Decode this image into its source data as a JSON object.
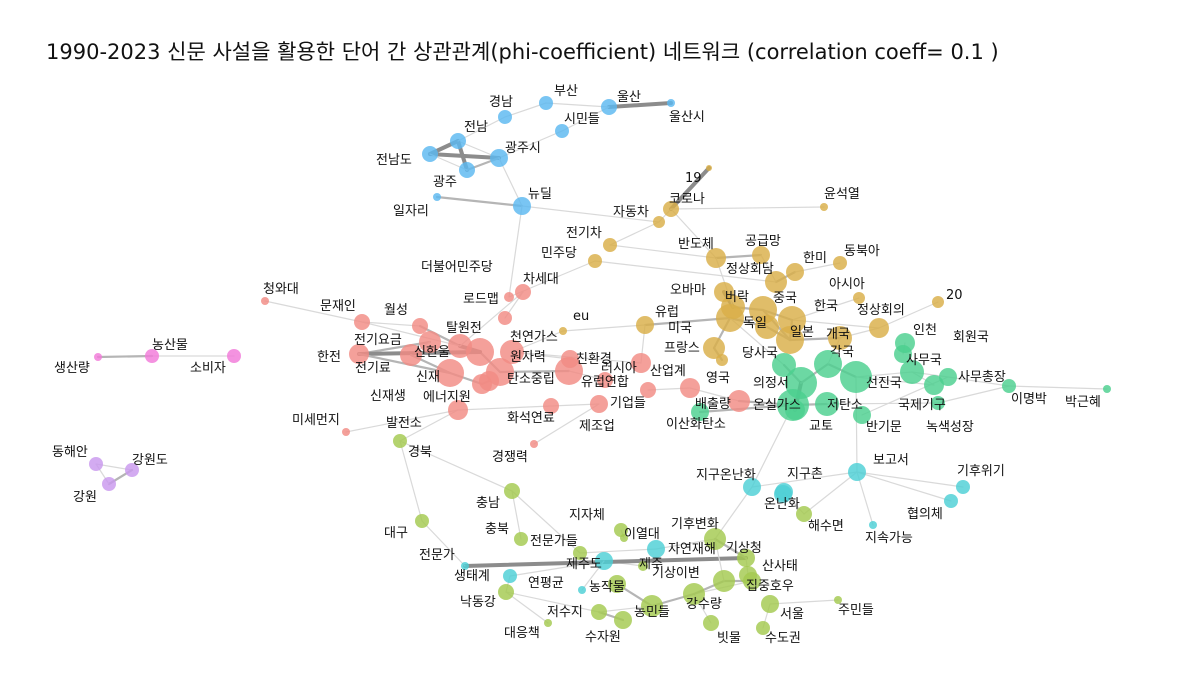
{
  "title": "1990-2023 신문 사설을 활용한 단어 간 상관관계(phi-coefficient) 네트워크 (correlation coeff= 0.1 )",
  "colors": {
    "blue": "#5bb8f0",
    "gold": "#d9ae48",
    "red": "#f28b84",
    "green": "#4ccf8f",
    "cyan": "#4dcfd6",
    "lime": "#a3c94f",
    "pink": "#f27ad9",
    "purple": "#c998ee"
  },
  "nodes": [
    {
      "id": "부산",
      "label": "부산",
      "c": "blue"
    },
    {
      "id": "경남",
      "label": "경남",
      "c": "blue"
    },
    {
      "id": "울산",
      "label": "울산",
      "c": "blue"
    },
    {
      "id": "울산시",
      "label": "울산시",
      "c": "blue"
    },
    {
      "id": "시민들",
      "label": "시민들",
      "c": "blue"
    },
    {
      "id": "전남",
      "label": "전남",
      "c": "blue"
    },
    {
      "id": "광주시",
      "label": "광주시",
      "c": "blue"
    },
    {
      "id": "전남도",
      "label": "전남도",
      "c": "blue"
    },
    {
      "id": "광주",
      "label": "광주",
      "c": "blue"
    },
    {
      "id": "일자리",
      "label": "일자리",
      "c": "blue"
    },
    {
      "id": "뉴딜",
      "label": "뉴딜",
      "c": "blue"
    },
    {
      "id": "19",
      "label": "19",
      "c": "gold"
    },
    {
      "id": "코로나",
      "label": "코로나",
      "c": "gold"
    },
    {
      "id": "자동차",
      "label": "자동차",
      "c": "gold"
    },
    {
      "id": "윤석열",
      "label": "윤석열",
      "c": "gold"
    },
    {
      "id": "전기차",
      "label": "전기차",
      "c": "gold"
    },
    {
      "id": "반도체",
      "label": "반도체",
      "c": "gold"
    },
    {
      "id": "공급망",
      "label": "공급망",
      "c": "gold"
    },
    {
      "id": "민주당",
      "label": "민주당",
      "c": "gold"
    },
    {
      "id": "정상회담",
      "label": "정상회담",
      "c": "gold"
    },
    {
      "id": "한미",
      "label": "한미",
      "c": "gold"
    },
    {
      "id": "동북아",
      "label": "동북아",
      "c": "gold"
    },
    {
      "id": "오바마",
      "label": "오바마",
      "c": "gold"
    },
    {
      "id": "버락",
      "label": "버락",
      "c": "gold"
    },
    {
      "id": "중국",
      "label": "중국",
      "c": "gold"
    },
    {
      "id": "아시아",
      "label": "아시아",
      "c": "gold"
    },
    {
      "id": "20",
      "label": "20",
      "c": "gold"
    },
    {
      "id": "한국",
      "label": "한국",
      "c": "gold"
    },
    {
      "id": "정상회의",
      "label": "정상회의",
      "c": "gold"
    },
    {
      "id": "유럽",
      "label": "유럽",
      "c": "gold"
    },
    {
      "id": "미국",
      "label": "미국",
      "c": "gold"
    },
    {
      "id": "독일",
      "label": "독일",
      "c": "gold"
    },
    {
      "id": "일본",
      "label": "일본",
      "c": "gold"
    },
    {
      "id": "개국",
      "label": "개국",
      "c": "gold"
    },
    {
      "id": "프랑스",
      "label": "프랑스",
      "c": "gold"
    },
    {
      "id": "영국",
      "label": "영국",
      "c": "gold"
    },
    {
      "id": "eu",
      "label": "eu",
      "c": "gold"
    },
    {
      "id": "더불어민주당",
      "label": "더불어민주당",
      "c": "red"
    },
    {
      "id": "차세대",
      "label": "차세대",
      "c": "red"
    },
    {
      "id": "청와대",
      "label": "청와대",
      "c": "red"
    },
    {
      "id": "로드맵",
      "label": "로드맵",
      "c": "red"
    },
    {
      "id": "문재인",
      "label": "문재인",
      "c": "red"
    },
    {
      "id": "월성",
      "label": "월성",
      "c": "red"
    },
    {
      "id": "탈원전",
      "label": "탈원전",
      "c": "red"
    },
    {
      "id": "전기요금",
      "label": "전기요금",
      "c": "red"
    },
    {
      "id": "천연가스",
      "label": "천연가스",
      "c": "red"
    },
    {
      "id": "한전",
      "label": "한전",
      "c": "red"
    },
    {
      "id": "신한울",
      "label": "신한울",
      "c": "red"
    },
    {
      "id": "원자력",
      "label": "원자력",
      "c": "red"
    },
    {
      "id": "친환경",
      "label": "친환경",
      "c": "red"
    },
    {
      "id": "전기료",
      "label": "전기료",
      "c": "red"
    },
    {
      "id": "신재",
      "label": "신재",
      "c": "red"
    },
    {
      "id": "탄소중립",
      "label": "탄소중립",
      "c": "red"
    },
    {
      "id": "러시아",
      "label": "러시아",
      "c": "red"
    },
    {
      "id": "유럽연합",
      "label": "유럽연합",
      "c": "red"
    },
    {
      "id": "산업계",
      "label": "산업계",
      "c": "red"
    },
    {
      "id": "신재생",
      "label": "신재생",
      "c": "red"
    },
    {
      "id": "에너지원",
      "label": "에너지원",
      "c": "red"
    },
    {
      "id": "기업들",
      "label": "기업들",
      "c": "red"
    },
    {
      "id": "미세먼지",
      "label": "미세먼지",
      "c": "red"
    },
    {
      "id": "발전소",
      "label": "발전소",
      "c": "red"
    },
    {
      "id": "화석연료",
      "label": "화석연료",
      "c": "red"
    },
    {
      "id": "제조업",
      "label": "제조업",
      "c": "red"
    },
    {
      "id": "배출량",
      "label": "배출량",
      "c": "red"
    },
    {
      "id": "경쟁력",
      "label": "경쟁력",
      "c": "red"
    },
    {
      "id": "인천",
      "label": "인천",
      "c": "green"
    },
    {
      "id": "회원국",
      "label": "회원국",
      "c": "green"
    },
    {
      "id": "당사국",
      "label": "당사국",
      "c": "green"
    },
    {
      "id": "각국",
      "label": "각국",
      "c": "green"
    },
    {
      "id": "사무국",
      "label": "사무국",
      "c": "green"
    },
    {
      "id": "의정서",
      "label": "의정서",
      "c": "green"
    },
    {
      "id": "선진국",
      "label": "선진국",
      "c": "green"
    },
    {
      "id": "사무총장",
      "label": "사무총장",
      "c": "green"
    },
    {
      "id": "온실가스",
      "label": "온실가스",
      "c": "green"
    },
    {
      "id": "저탄소",
      "label": "저탄소",
      "c": "green"
    },
    {
      "id": "국제기구",
      "label": "국제기구",
      "c": "green"
    },
    {
      "id": "이명박",
      "label": "이명박",
      "c": "green"
    },
    {
      "id": "박근혜",
      "label": "박근혜",
      "c": "green"
    },
    {
      "id": "이산화탄소",
      "label": "이산화탄소",
      "c": "green"
    },
    {
      "id": "교토",
      "label": "교토",
      "c": "green"
    },
    {
      "id": "반기문",
      "label": "반기문",
      "c": "green"
    },
    {
      "id": "녹색성장",
      "label": "녹색성장",
      "c": "green"
    },
    {
      "id": "보고서",
      "label": "보고서",
      "c": "cyan"
    },
    {
      "id": "지구온난화",
      "label": "지구온난화",
      "c": "cyan"
    },
    {
      "id": "지구촌",
      "label": "지구촌",
      "c": "cyan"
    },
    {
      "id": "기후위기",
      "label": "기후위기",
      "c": "cyan"
    },
    {
      "id": "온난화",
      "label": "온난화",
      "c": "cyan"
    },
    {
      "id": "협의체",
      "label": "협의체",
      "c": "cyan"
    },
    {
      "id": "지속가능",
      "label": "지속가능",
      "c": "cyan"
    },
    {
      "id": "자연재해",
      "label": "자연재해",
      "c": "cyan"
    },
    {
      "id": "제주도",
      "label": "제주도",
      "c": "cyan"
    },
    {
      "id": "생태계",
      "label": "생태계",
      "c": "cyan"
    },
    {
      "id": "연평균",
      "label": "연평균",
      "c": "cyan"
    },
    {
      "id": "전문가",
      "label": "전문가",
      "c": "cyan"
    },
    {
      "id": "경북",
      "label": "경북",
      "c": "lime"
    },
    {
      "id": "충남",
      "label": "충남",
      "c": "lime"
    },
    {
      "id": "대구",
      "label": "대구",
      "c": "lime"
    },
    {
      "id": "충북",
      "label": "충북",
      "c": "lime"
    },
    {
      "id": "전문가들",
      "label": "전문가들",
      "c": "lime"
    },
    {
      "id": "지자체",
      "label": "지자체",
      "c": "lime"
    },
    {
      "id": "이열대",
      "label": "이열대",
      "c": "lime"
    },
    {
      "id": "기후변화",
      "label": "기후변화",
      "c": "lime"
    },
    {
      "id": "해수면",
      "label": "해수면",
      "c": "lime"
    },
    {
      "id": "기상청",
      "label": "기상청",
      "c": "lime"
    },
    {
      "id": "제주",
      "label": "제주",
      "c": "lime"
    },
    {
      "id": "산사태",
      "label": "산사태",
      "c": "lime"
    },
    {
      "id": "농작물",
      "label": "농작물",
      "c": "lime"
    },
    {
      "id": "기상이변",
      "label": "기상이변",
      "c": "lime"
    },
    {
      "id": "집중호우",
      "label": "집중호우",
      "c": "lime"
    },
    {
      "id": "낙동강",
      "label": "낙동강",
      "c": "lime"
    },
    {
      "id": "저수지",
      "label": "저수지",
      "c": "lime"
    },
    {
      "id": "농민들",
      "label": "농민들",
      "c": "lime"
    },
    {
      "id": "강수량",
      "label": "강수량",
      "c": "lime"
    },
    {
      "id": "주민들",
      "label": "주민들",
      "c": "lime"
    },
    {
      "id": "서울",
      "label": "서울",
      "c": "lime"
    },
    {
      "id": "대응책",
      "label": "대응책",
      "c": "lime"
    },
    {
      "id": "수자원",
      "label": "수자원",
      "c": "lime"
    },
    {
      "id": "빗물",
      "label": "빗물",
      "c": "lime"
    },
    {
      "id": "수도권",
      "label": "수도권",
      "c": "lime"
    },
    {
      "id": "농산물",
      "label": "농산물",
      "c": "pink"
    },
    {
      "id": "소비자",
      "label": "소비자",
      "c": "pink"
    },
    {
      "id": "생산량",
      "label": "생산량",
      "c": "pink"
    },
    {
      "id": "동해안",
      "label": "동해안",
      "c": "purple"
    },
    {
      "id": "강원도",
      "label": "강원도",
      "c": "purple"
    },
    {
      "id": "강원",
      "label": "강원",
      "c": "purple"
    }
  ]
}
